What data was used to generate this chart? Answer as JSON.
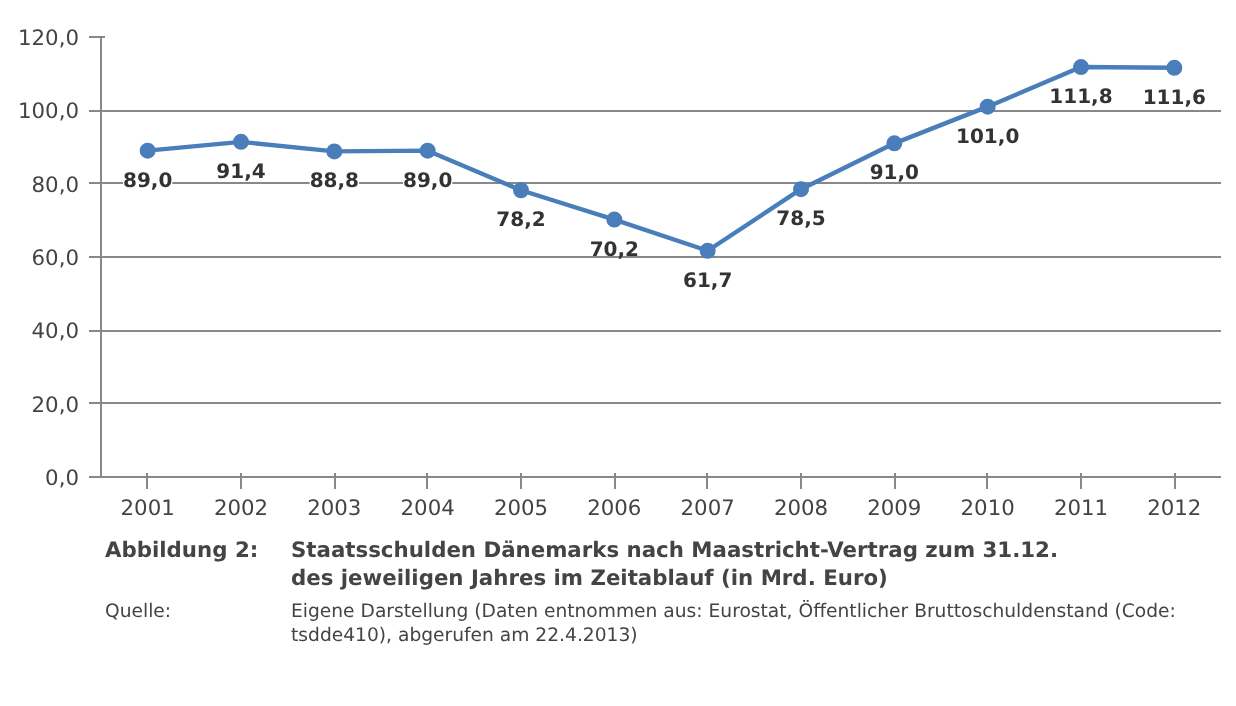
{
  "chart_data": {
    "type": "line",
    "title": "Staatsschulden Dänemarks nach Maastricht-Vertrag zum 31.12. des jeweiligen Jahres im Zeitablauf (in Mrd. Euro)",
    "annotations": [
      "Abbildung 2:",
      "Quelle:",
      "Eigene Darstellung (Daten entnommen aus: Eurostat, Öffentlicher Bruttoschuldenstand (Code: tsdde410), abgerufen am 22.4.2013)"
    ],
    "categories": [
      "2001",
      "2002",
      "2003",
      "2004",
      "2005",
      "2006",
      "2007",
      "2008",
      "2009",
      "2010",
      "2011",
      "2012"
    ],
    "series": [
      {
        "color": "#4a7ebb",
        "values": [
          89.0,
          91.4,
          88.8,
          89.0,
          78.2,
          70.2,
          61.7,
          78.5,
          91.0,
          101.0,
          111.8,
          111.6
        ],
        "value_labels": [
          "89,0",
          "91,4",
          "88,8",
          "89,0",
          "78,2",
          "70,2",
          "61,7",
          "78,5",
          "91,0",
          "101,0",
          "111,8",
          "111,6"
        ]
      }
    ],
    "ylim": [
      0,
      120
    ],
    "yticks": [
      {
        "value": 0,
        "label": "0,0"
      },
      {
        "value": 20,
        "label": "20,0"
      },
      {
        "value": 40,
        "label": "40,0"
      },
      {
        "value": 60,
        "label": "60,0"
      },
      {
        "value": 80,
        "label": "80,0"
      },
      {
        "value": 100,
        "label": "100,0"
      },
      {
        "value": 120,
        "label": "120,0"
      }
    ],
    "grid": "y",
    "marker": "circle",
    "line_style": "solid"
  }
}
